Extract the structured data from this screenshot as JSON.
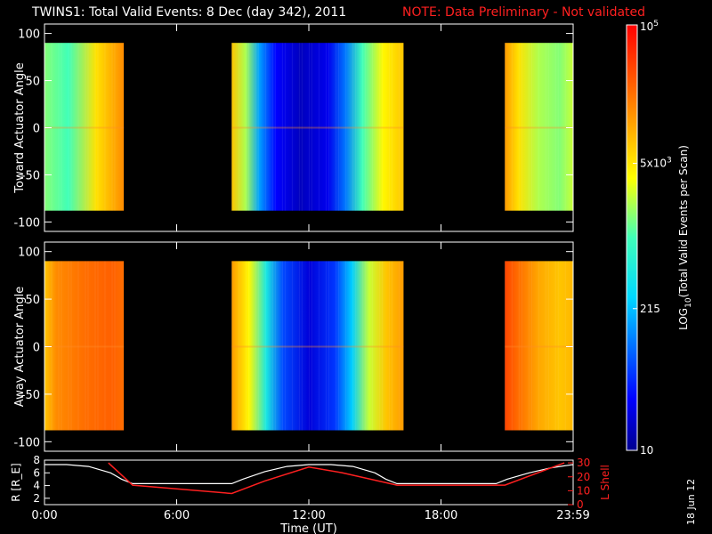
{
  "header": {
    "title": "TWINS1: Total Valid Events:  8 Dec (day 342), 2011",
    "note": "NOTE: Data Preliminary - Not validated"
  },
  "datestamp": "18 Jun 12",
  "colors": {
    "background": "#000000",
    "axes": "#ffffff",
    "note": "#ff2020",
    "lshell": "#ff2020",
    "radius": "#ffffff"
  },
  "chart_data": [
    {
      "type": "heatmap",
      "panel": "top",
      "ylabel": "Toward Actuator Angle",
      "ylim": [
        -110,
        110
      ],
      "yticks": [
        100,
        50,
        0,
        -50,
        -100
      ],
      "xlim": [
        0,
        24
      ],
      "data_y_range": [
        -88,
        90
      ],
      "data_intervals": [
        {
          "start": 0,
          "end": 3.6,
          "profile": [
            [
              0,
              0.55
            ],
            [
              0.3,
              0.5
            ],
            [
              0.65,
              0.68
            ],
            [
              1,
              0.8
            ]
          ]
        },
        {
          "start": 8.5,
          "end": 16.3,
          "profile": [
            [
              0,
              0.72
            ],
            [
              0.08,
              0.58
            ],
            [
              0.16,
              0.3
            ],
            [
              0.26,
              0.12
            ],
            [
              0.4,
              0.05
            ],
            [
              0.56,
              0.1
            ],
            [
              0.66,
              0.25
            ],
            [
              0.76,
              0.5
            ],
            [
              0.88,
              0.65
            ],
            [
              1,
              0.72
            ]
          ]
        },
        {
          "start": 20.9,
          "end": 24,
          "profile": [
            [
              0,
              0.78
            ],
            [
              0.2,
              0.68
            ],
            [
              0.5,
              0.58
            ],
            [
              0.8,
              0.55
            ],
            [
              1,
              0.6
            ]
          ]
        }
      ]
    },
    {
      "type": "heatmap",
      "panel": "middle",
      "ylabel": "Away Actuator Angle",
      "ylim": [
        -110,
        110
      ],
      "yticks": [
        100,
        50,
        0,
        -50,
        -100
      ],
      "xlim": [
        0,
        24
      ],
      "data_y_range": [
        -88,
        90
      ],
      "data_intervals": [
        {
          "start": 0,
          "end": 3.6,
          "profile": [
            [
              0,
              0.72
            ],
            [
              0.15,
              0.8
            ],
            [
              0.5,
              0.84
            ],
            [
              0.85,
              0.86
            ],
            [
              1,
              0.84
            ]
          ]
        },
        {
          "start": 8.5,
          "end": 16.3,
          "profile": [
            [
              0,
              0.78
            ],
            [
              0.1,
              0.65
            ],
            [
              0.2,
              0.42
            ],
            [
              0.3,
              0.2
            ],
            [
              0.45,
              0.08
            ],
            [
              0.6,
              0.18
            ],
            [
              0.7,
              0.35
            ],
            [
              0.8,
              0.6
            ],
            [
              0.9,
              0.72
            ],
            [
              1,
              0.78
            ]
          ]
        },
        {
          "start": 20.9,
          "end": 24,
          "profile": [
            [
              0,
              0.9
            ],
            [
              0.2,
              0.84
            ],
            [
              0.5,
              0.76
            ],
            [
              0.8,
              0.72
            ],
            [
              1,
              0.74
            ]
          ]
        }
      ]
    },
    {
      "type": "line",
      "panel": "bottom",
      "xlabel": "Time (UT)",
      "xlim": [
        0,
        24
      ],
      "xticks": [
        "0:00",
        "6:00",
        "12:00",
        "18:00",
        "23:59"
      ],
      "xtick_values": [
        0,
        6,
        12,
        18,
        24
      ],
      "ylabel": "R [R_E]",
      "ylim": [
        1,
        8
      ],
      "yticks": [
        8,
        6,
        4,
        2
      ],
      "y2label": "L Shell",
      "y2lim": [
        0,
        32
      ],
      "y2ticks": [
        30,
        20,
        10,
        0
      ],
      "series": [
        {
          "name": "R [R_E]",
          "axis": "left",
          "color": "#ffffff",
          "x": [
            0,
            1,
            2,
            3,
            3.5,
            4,
            6,
            8,
            8.5,
            9,
            10,
            11,
            12,
            13,
            14,
            15,
            15.5,
            16,
            18,
            20,
            20.5,
            21,
            22,
            23,
            24
          ],
          "y": [
            7.3,
            7.3,
            7.0,
            6.0,
            5.0,
            4.3,
            4.3,
            4.3,
            4.3,
            5.0,
            6.2,
            7.0,
            7.3,
            7.3,
            7.0,
            6.0,
            5.0,
            4.3,
            4.3,
            4.3,
            4.3,
            5.0,
            6.0,
            6.8,
            7.3
          ]
        },
        {
          "name": "L Shell",
          "axis": "right",
          "color": "#ff2020",
          "x": [
            2.9,
            4,
            8.5,
            10,
            12,
            13.5,
            16,
            20.9,
            23.6
          ],
          "y": [
            30,
            14,
            8,
            17,
            27,
            23,
            14,
            14,
            30
          ]
        }
      ]
    },
    {
      "type": "colorbar",
      "label": "LOG10(Total Valid Events per Scan)",
      "label_main": "LOG",
      "label_sub": "10",
      "label_rest": "(Total Valid Events per Scan)",
      "scale": "log",
      "range": [
        10,
        100000
      ],
      "ticks": [
        {
          "value": 100000,
          "mantissa": "10",
          "exp": "5"
        },
        {
          "value": 5000,
          "mantissa": "5x10",
          "exp": "3"
        },
        {
          "value": 215,
          "mantissa": "215",
          "exp": ""
        },
        {
          "value": 10,
          "mantissa": "10",
          "exp": ""
        }
      ]
    }
  ]
}
